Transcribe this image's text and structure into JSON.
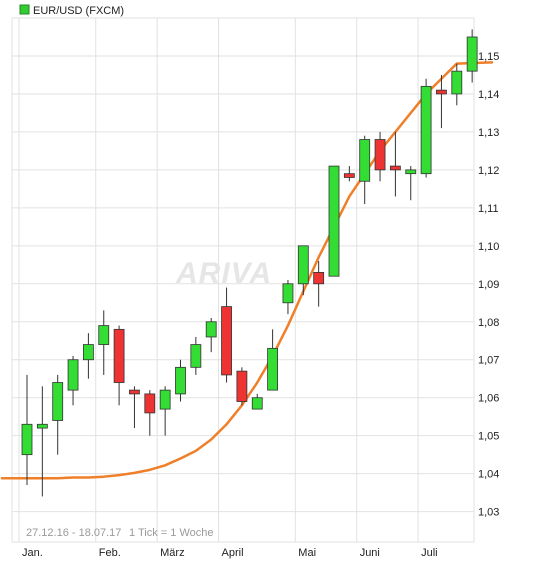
{
  "chart_data": {
    "type": "candlestick",
    "title": "EUR/USD (FXCM)",
    "legend": {
      "label": "EUR/USD (FXCM)",
      "color": "#33cc33",
      "placement": "top-left"
    },
    "footer": {
      "range": "27.12.16 - 18.07.17",
      "tick_info": "1 Tick = 1 Woche"
    },
    "watermark": "ARIVA",
    "ylim": [
      1.022,
      1.16
    ],
    "y_ticks": [
      "1,03",
      "1,04",
      "1,05",
      "1,06",
      "1,07",
      "1,08",
      "1,09",
      "1,10",
      "1,11",
      "1,12",
      "1,13",
      "1,14",
      "1,15"
    ],
    "x_labels": [
      "Jan.",
      "Feb.",
      "März",
      "April",
      "Mai",
      "Juni",
      "Juli"
    ],
    "up_color": "#33dd33",
    "down_color": "#ee3333",
    "ma_color": "#f07f2a",
    "candles": [
      {
        "o": 1.045,
        "h": 1.066,
        "l": 1.037,
        "c": 1.053
      },
      {
        "o": 1.052,
        "h": 1.063,
        "l": 1.034,
        "c": 1.053
      },
      {
        "o": 1.054,
        "h": 1.066,
        "l": 1.045,
        "c": 1.064
      },
      {
        "o": 1.062,
        "h": 1.071,
        "l": 1.058,
        "c": 1.07
      },
      {
        "o": 1.07,
        "h": 1.077,
        "l": 1.065,
        "c": 1.074
      },
      {
        "o": 1.074,
        "h": 1.083,
        "l": 1.066,
        "c": 1.079
      },
      {
        "o": 1.078,
        "h": 1.079,
        "l": 1.058,
        "c": 1.064
      },
      {
        "o": 1.062,
        "h": 1.063,
        "l": 1.052,
        "c": 1.061
      },
      {
        "o": 1.061,
        "h": 1.062,
        "l": 1.05,
        "c": 1.056
      },
      {
        "o": 1.057,
        "h": 1.063,
        "l": 1.05,
        "c": 1.062
      },
      {
        "o": 1.061,
        "h": 1.07,
        "l": 1.059,
        "c": 1.068
      },
      {
        "o": 1.068,
        "h": 1.076,
        "l": 1.066,
        "c": 1.074
      },
      {
        "o": 1.076,
        "h": 1.081,
        "l": 1.072,
        "c": 1.08
      },
      {
        "o": 1.084,
        "h": 1.089,
        "l": 1.064,
        "c": 1.066
      },
      {
        "o": 1.067,
        "h": 1.068,
        "l": 1.058,
        "c": 1.059
      },
      {
        "o": 1.057,
        "h": 1.061,
        "l": 1.057,
        "c": 1.06
      },
      {
        "o": 1.062,
        "h": 1.078,
        "l": 1.062,
        "c": 1.073
      },
      {
        "o": 1.085,
        "h": 1.091,
        "l": 1.082,
        "c": 1.09
      },
      {
        "o": 1.09,
        "h": 1.1,
        "l": 1.087,
        "c": 1.1
      },
      {
        "o": 1.093,
        "h": 1.096,
        "l": 1.084,
        "c": 1.09
      },
      {
        "o": 1.092,
        "h": 1.121,
        "l": 1.092,
        "c": 1.121
      },
      {
        "o": 1.119,
        "h": 1.121,
        "l": 1.117,
        "c": 1.118
      },
      {
        "o": 1.117,
        "h": 1.129,
        "l": 1.111,
        "c": 1.128
      },
      {
        "o": 1.128,
        "h": 1.13,
        "l": 1.117,
        "c": 1.12
      },
      {
        "o": 1.121,
        "h": 1.13,
        "l": 1.113,
        "c": 1.12
      },
      {
        "o": 1.119,
        "h": 1.121,
        "l": 1.112,
        "c": 1.12
      },
      {
        "o": 1.119,
        "h": 1.144,
        "l": 1.118,
        "c": 1.142
      },
      {
        "o": 1.141,
        "h": 1.145,
        "l": 1.131,
        "c": 1.14
      },
      {
        "o": 1.14,
        "h": 1.148,
        "l": 1.137,
        "c": 1.146
      },
      {
        "o": 1.146,
        "h": 1.157,
        "l": 1.143,
        "c": 1.155
      }
    ],
    "moving_average": [
      1.0388,
      1.0388,
      1.0388,
      1.039,
      1.039,
      1.0392,
      1.0396,
      1.0402,
      1.041,
      1.0422,
      1.044,
      1.046,
      1.049,
      1.053,
      1.058,
      1.064,
      1.071,
      1.079,
      1.088,
      1.097,
      1.105,
      1.113,
      1.119,
      1.125,
      1.13,
      1.135,
      1.14,
      1.144,
      1.148
    ]
  }
}
